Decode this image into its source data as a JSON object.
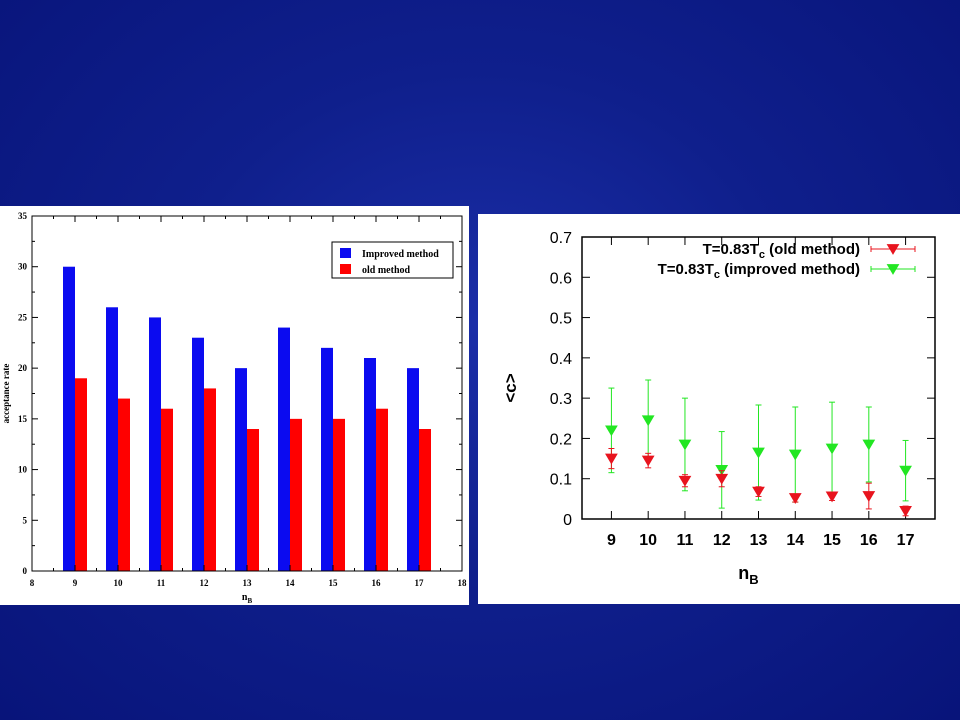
{
  "chart_data": [
    {
      "type": "bar",
      "x": [
        9,
        10,
        11,
        12,
        13,
        14,
        15,
        16,
        17
      ],
      "series": [
        {
          "name": "Improved method",
          "color": "#0b0bf0",
          "values": [
            30,
            26,
            25,
            23,
            20,
            24,
            22,
            21,
            20
          ]
        },
        {
          "name": "old method",
          "color": "#ff0000",
          "values": [
            19,
            17,
            16,
            18,
            14,
            15,
            15,
            16,
            14
          ]
        }
      ],
      "xlabel_main": "n",
      "xlabel_sub": "B",
      "ylabel": "acceptance rate",
      "xlim": [
        8,
        18
      ],
      "ylim": [
        0,
        35
      ],
      "xticks": [
        8,
        9,
        10,
        11,
        12,
        13,
        14,
        15,
        16,
        17,
        18
      ],
      "yticks": [
        0,
        5,
        10,
        15,
        20,
        25,
        30,
        35
      ],
      "legend_position": "top-right",
      "grid": false
    },
    {
      "type": "scatter",
      "x": [
        9,
        10,
        11,
        12,
        13,
        14,
        15,
        16,
        17
      ],
      "series": [
        {
          "name_main": "T=0.83T",
          "name_sub": "c",
          "name_suffix": " (old method)",
          "color": "#e8141e",
          "y": [
            0.15,
            0.145,
            0.095,
            0.1,
            0.068,
            0.052,
            0.056,
            0.057,
            0.02
          ],
          "err": [
            0.025,
            0.018,
            0.015,
            0.02,
            0.012,
            0.01,
            0.01,
            0.032,
            0.012
          ]
        },
        {
          "name_main": "T=0.83T",
          "name_sub": "c",
          "name_suffix": " (improved method)",
          "color": "#22e622",
          "y": [
            0.22,
            0.245,
            0.185,
            0.122,
            0.165,
            0.16,
            0.175,
            0.185,
            0.12
          ],
          "err": [
            0.105,
            0.1,
            0.115,
            0.095,
            0.118,
            0.118,
            0.115,
            0.093,
            0.075
          ]
        }
      ],
      "xlabel_main": "n",
      "xlabel_sub": "B",
      "ylabel": "<c>",
      "xlim": [
        8.2,
        17.8
      ],
      "ylim": [
        0,
        0.7
      ],
      "xticks": [
        9,
        10,
        11,
        12,
        13,
        14,
        15,
        16,
        17
      ],
      "yticks": [
        "0",
        "0.1",
        "0.2",
        "0.3",
        "0.4",
        "0.5",
        "0.6",
        "0.7"
      ],
      "legend_position": "top-right",
      "grid": false
    }
  ]
}
